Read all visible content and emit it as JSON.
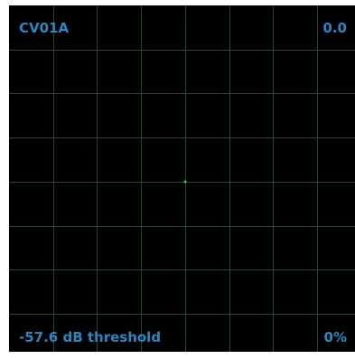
{
  "scope": {
    "channel_label": "CV01A",
    "top_value": "0.0",
    "threshold_label": "-57.6 dB threshold",
    "percent_label": "0%",
    "grid_divisions": 8,
    "point": {
      "x": 0,
      "y": 0
    }
  },
  "colors": {
    "background": "#000000",
    "grid": "#1f4a3c",
    "text": "#2e86c1",
    "point": "#2ecc40"
  }
}
